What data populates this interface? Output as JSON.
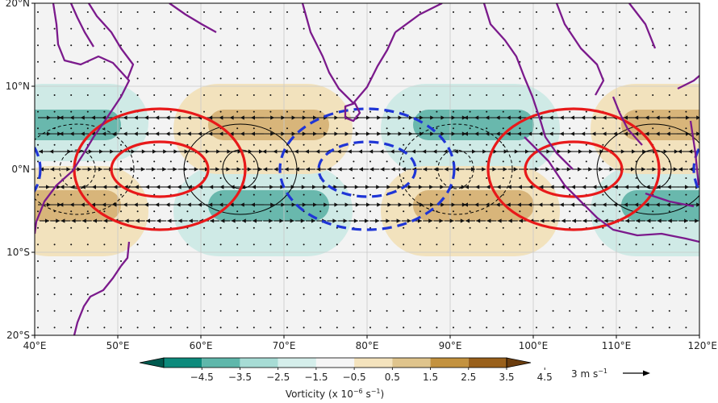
{
  "map": {
    "extent": {
      "lon": [
        40,
        120
      ],
      "lat": [
        -20,
        20
      ]
    },
    "lat_ticks": [
      {
        "value": 20,
        "label": "20°N"
      },
      {
        "value": 10,
        "label": "10°N"
      },
      {
        "value": 0,
        "label": "0°N"
      },
      {
        "value": -10,
        "label": "10°S"
      },
      {
        "value": -20,
        "label": "20°S"
      }
    ],
    "lon_ticks": [
      {
        "value": 40,
        "label": "40°E"
      },
      {
        "value": 50,
        "label": "50°E"
      },
      {
        "value": 60,
        "label": "60°E"
      },
      {
        "value": 70,
        "label": "70°E"
      },
      {
        "value": 80,
        "label": "80°E"
      },
      {
        "value": 90,
        "label": "90°E"
      },
      {
        "value": 100,
        "label": "100°E"
      },
      {
        "value": 110,
        "label": "110°E"
      },
      {
        "value": 120,
        "label": "120°E"
      }
    ],
    "coastline_color": "#7b1a8c",
    "grid": true,
    "background": "#f3f3f3"
  },
  "colorbar": {
    "title_prefix": "Vorticity (x 10",
    "title_exp1": "−6",
    "title_mid": " s",
    "title_exp2": "−1",
    "title_suffix": ")",
    "ticks": [
      "−4.5",
      "−3.5",
      "−2.5",
      "−1.5",
      "−0.5",
      "0.5",
      "1.5",
      "2.5",
      "3.5",
      "4.5"
    ],
    "colors": [
      "#005a4f",
      "#0d8a7c",
      "#5fb7ab",
      "#a7dcd5",
      "#d5eeeb",
      "#f5f5f5",
      "#f4e3bd",
      "#dfc48c",
      "#c3923f",
      "#99601b",
      "#6b3d0e"
    ]
  },
  "reference_vector": {
    "magnitude_label": "3 m s",
    "exp": "−1"
  },
  "overlay_colors": {
    "positive_contour": "#e8191a",
    "negative_contour": "#1f35d6"
  }
}
